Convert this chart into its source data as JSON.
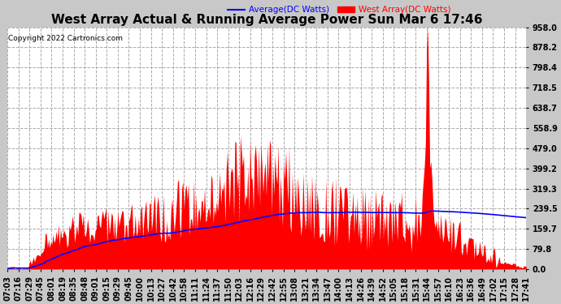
{
  "title": "West Array Actual & Running Average Power Sun Mar 6 17:46",
  "copyright": "Copyright 2022 Cartronics.com",
  "legend_avg": "Average(DC Watts)",
  "legend_west": "West Array(DC Watts)",
  "ymin": 0.0,
  "ymax": 958.0,
  "yticks": [
    0.0,
    79.8,
    159.7,
    239.5,
    319.3,
    399.2,
    479.0,
    558.9,
    638.7,
    718.5,
    798.4,
    878.2,
    958.0
  ],
  "bg_color": "#c8c8c8",
  "plot_bg_color": "#ffffff",
  "grid_color": "#aaaaaa",
  "title_color": "black",
  "avg_color": "blue",
  "west_color": "red",
  "fill_color": "red",
  "title_fontsize": 11,
  "tick_fontsize": 7,
  "xtick_labels": [
    "07:03",
    "07:16",
    "07:29",
    "07:45",
    "08:01",
    "08:19",
    "08:35",
    "08:48",
    "09:01",
    "09:15",
    "09:29",
    "09:45",
    "10:00",
    "10:13",
    "10:27",
    "10:42",
    "10:58",
    "11:11",
    "11:24",
    "11:37",
    "11:50",
    "12:03",
    "12:16",
    "12:29",
    "12:42",
    "12:55",
    "13:08",
    "13:21",
    "13:34",
    "13:47",
    "14:00",
    "14:13",
    "14:26",
    "14:39",
    "14:52",
    "15:05",
    "15:18",
    "15:31",
    "15:44",
    "15:57",
    "16:10",
    "16:23",
    "16:36",
    "16:49",
    "17:02",
    "17:15",
    "17:28",
    "17:41"
  ]
}
